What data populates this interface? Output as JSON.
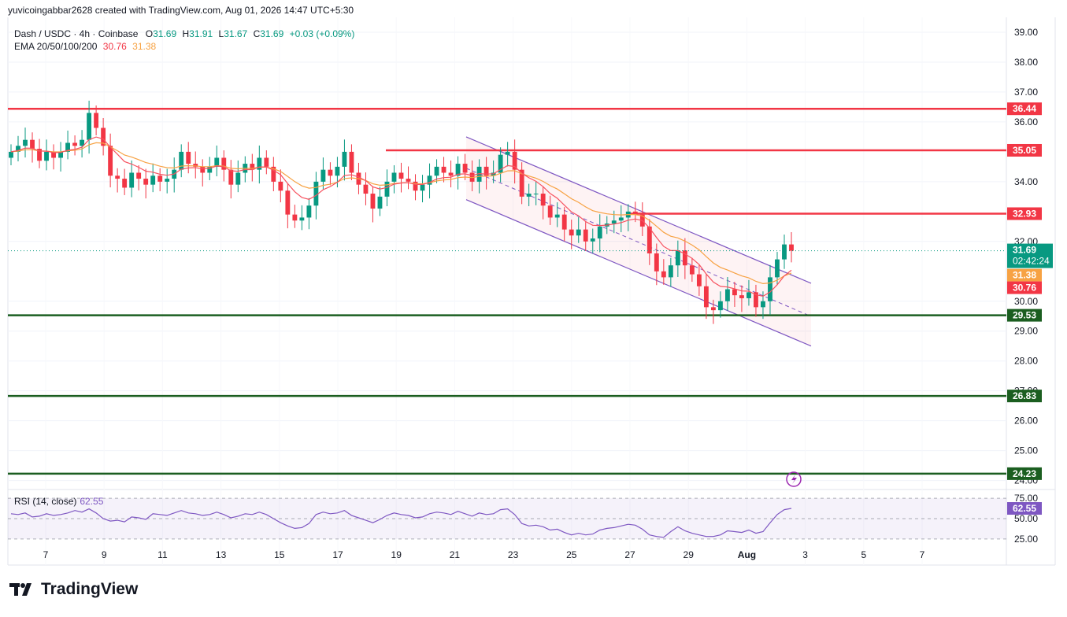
{
  "header": {
    "attribution": "yuvicoingabbar2628 created with TradingView.com, Aug 01, 2026 14:47 UTC+5:30"
  },
  "legend": {
    "symbol": "Dash / USDC · 4h · Coinbase",
    "o_label": "O",
    "o_val": "31.69",
    "h_label": "H",
    "h_val": "31.91",
    "l_label": "L",
    "l_val": "31.67",
    "c_label": "C",
    "c_val": "31.69",
    "change": "+0.03 (+0.09%)",
    "ema_label": "EMA 20/50/100/200",
    "ema_fast": "30.76",
    "ema_slow": "31.38"
  },
  "rsi": {
    "label": "RSI (14, close)",
    "value": "62.55"
  },
  "brand": {
    "name": "TradingView"
  },
  "colors": {
    "up": "#089981",
    "down": "#f23645",
    "ema_fast": "#f7525f",
    "ema_slow": "#f7a243",
    "channel": "#7e57c2",
    "resistance": "#f23645",
    "support": "#1b5e20",
    "rsi": "#7e57c2"
  },
  "chart_data": {
    "type": "line",
    "title": "Dash / USDC · 4h · Coinbase",
    "x_ticks": [
      "7",
      "9",
      "11",
      "13",
      "15",
      "17",
      "19",
      "21",
      "23",
      "25",
      "27",
      "29",
      "Aug",
      "3",
      "5",
      "7"
    ],
    "y_ticks": [
      "39.00",
      "38.00",
      "37.00",
      "36.00",
      "34.00",
      "32.00",
      "30.00",
      "29.00",
      "28.00",
      "27.00",
      "26.00",
      "25.00",
      "24.00"
    ],
    "ylim": [
      23.7,
      39.5
    ],
    "last_price": "31.69",
    "countdown": "02:42:24",
    "ema_labels": [
      "31.38",
      "30.76"
    ],
    "horizontal_levels": [
      {
        "value": 36.44,
        "label": "36.44",
        "kind": "resistance"
      },
      {
        "value": 35.05,
        "label": "35.05",
        "kind": "resistance"
      },
      {
        "value": 32.93,
        "label": "32.93",
        "kind": "resistance"
      },
      {
        "value": 29.53,
        "label": "29.53",
        "kind": "support"
      },
      {
        "value": 26.83,
        "label": "26.83",
        "kind": "support"
      },
      {
        "value": 24.23,
        "label": "24.23",
        "kind": "support"
      }
    ],
    "closes": [
      35.0,
      35.2,
      35.4,
      35.1,
      34.7,
      35.0,
      34.8,
      35.0,
      35.3,
      35.2,
      35.4,
      36.3,
      35.8,
      35.2,
      34.2,
      34.1,
      33.8,
      34.3,
      34.1,
      33.9,
      34.2,
      34.0,
      34.1,
      34.4,
      35.0,
      34.6,
      34.5,
      34.3,
      34.5,
      34.8,
      34.4,
      33.9,
      34.3,
      34.6,
      34.4,
      34.8,
      34.5,
      34.0,
      33.7,
      32.9,
      32.7,
      32.8,
      33.2,
      34.0,
      34.4,
      34.2,
      34.5,
      35.0,
      34.3,
      33.9,
      33.6,
      33.1,
      33.5,
      34.0,
      34.3,
      34.1,
      34.0,
      33.7,
      33.9,
      34.2,
      34.5,
      34.3,
      34.2,
      34.6,
      34.3,
      34.0,
      34.5,
      34.2,
      34.3,
      34.9,
      35.0,
      34.4,
      33.5,
      33.6,
      33.6,
      33.2,
      32.8,
      32.9,
      32.4,
      32.2,
      32.4,
      32.0,
      32.1,
      32.5,
      32.6,
      32.7,
      32.8,
      33.0,
      32.9,
      32.5,
      31.6,
      31.0,
      30.8,
      31.2,
      31.7,
      31.2,
      30.9,
      30.5,
      29.8,
      29.7,
      30.0,
      30.4,
      30.2,
      30.1,
      30.3,
      29.8,
      30.0,
      30.8,
      31.4,
      31.9,
      31.69
    ],
    "rsi_values": [
      56,
      55,
      57,
      52,
      53,
      56,
      54,
      55,
      57,
      60,
      58,
      62,
      57,
      50,
      47,
      48,
      46,
      52,
      51,
      49,
      56,
      55,
      54,
      57,
      60,
      57,
      56,
      54,
      55,
      58,
      55,
      51,
      53,
      56,
      55,
      58,
      55,
      50,
      45,
      41,
      38,
      39,
      44,
      55,
      58,
      56,
      57,
      60,
      54,
      51,
      48,
      45,
      49,
      54,
      57,
      55,
      54,
      51,
      52,
      56,
      58,
      57,
      55,
      59,
      56,
      53,
      57,
      55,
      56,
      61,
      62,
      55,
      44,
      41,
      42,
      40,
      36,
      37,
      33,
      30,
      32,
      30,
      31,
      36,
      38,
      39,
      41,
      43,
      42,
      37,
      30,
      28,
      27,
      34,
      40,
      35,
      32,
      30,
      28,
      28,
      30,
      35,
      34,
      33,
      36,
      32,
      34,
      45,
      55,
      61,
      62.55
    ],
    "rsi_levels": [
      "75.00",
      "50.00",
      "25.00"
    ],
    "rsi_ylim": [
      20,
      80
    ]
  }
}
